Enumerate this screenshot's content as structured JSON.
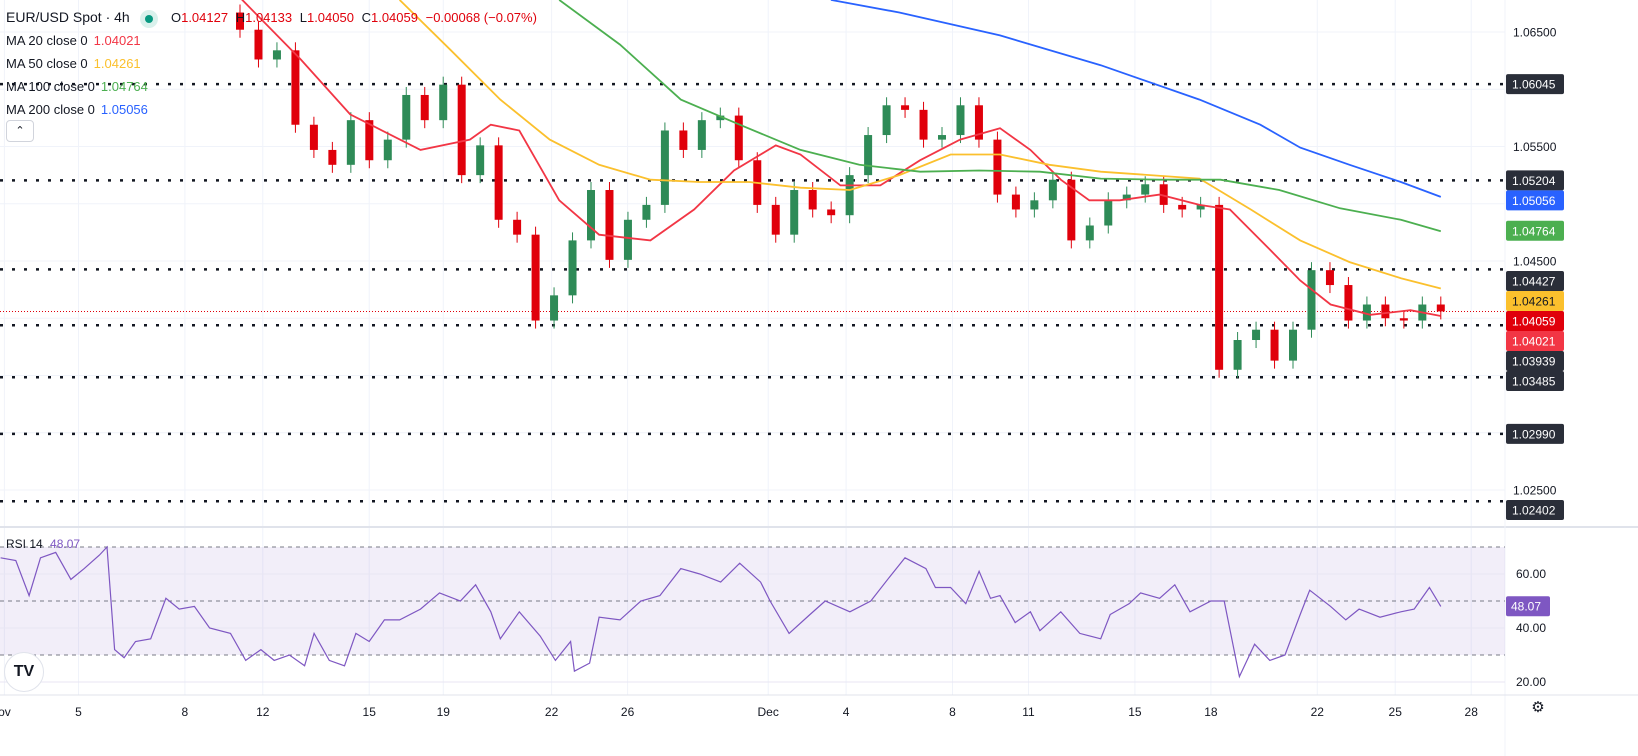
{
  "header": {
    "symbol": "EUR/USD Spot · 4h",
    "o_label": "O",
    "o": "1.04127",
    "h_label": "H",
    "h": "1.04133",
    "l_label": "L",
    "l": "1.04050",
    "c_label": "C",
    "c": "1.04059",
    "change": "−0.00068 (−0.07%)",
    "market_status_color": "#089981"
  },
  "indicators": [
    {
      "label": "MA 20 close 0",
      "value": "1.04021",
      "color": "#f23645"
    },
    {
      "label": "MA 50 close 0",
      "value": "1.04261",
      "color": "#fbc02d"
    },
    {
      "label": "MA 100 close 0",
      "value": "1.04764",
      "color": "#4caf50"
    },
    {
      "label": "MA 200 close 0",
      "value": "1.05056",
      "color": "#2962ff"
    }
  ],
  "collapse_icon": "chevron-up-icon",
  "rsi_legend": {
    "label": "RSI 14",
    "value": "48.07",
    "color": "#7e57c2"
  },
  "colors": {
    "up": "#2e8b57",
    "down": "#e0000b",
    "level_badge": "#2a2e39",
    "rsi_band": "#7e57c2"
  },
  "chart_data": {
    "type": "candlestick",
    "price_axis": {
      "ticks": [
        "1.06500",
        "1.05500",
        "1.04500",
        "1.02500"
      ],
      "tick_values": [
        1.065,
        1.055,
        1.045,
        1.025
      ],
      "range": [
        1.0225,
        1.0678
      ]
    },
    "levels": [
      {
        "value": 1.06045,
        "label": "1.06045"
      },
      {
        "value": 1.05204,
        "label": "1.05204"
      },
      {
        "value": 1.04427,
        "label": "1.04427"
      },
      {
        "value": 1.03939,
        "label": "1.03939"
      },
      {
        "value": 1.03485,
        "label": "1.03485"
      },
      {
        "value": 1.0299,
        "label": "1.02990"
      },
      {
        "value": 1.02402,
        "label": "1.02402"
      }
    ],
    "last_price": {
      "value": 1.04059,
      "label": "1.04059"
    },
    "closes": [
      1.0652,
      1.0626,
      1.0634,
      1.0569,
      1.0547,
      1.0534,
      1.0573,
      1.0538,
      1.0556,
      1.0595,
      1.0573,
      1.0604,
      1.0525,
      1.0551,
      1.0486,
      1.0473,
      1.0398,
      1.042,
      1.0468,
      1.0512,
      1.0451,
      1.0486,
      1.0499,
      1.0564,
      1.0547,
      1.0573,
      1.0577,
      1.0538,
      1.0499,
      1.0473,
      1.0512,
      1.0495,
      1.049,
      1.0525,
      1.056,
      1.0586,
      1.0582,
      1.0556,
      1.056,
      1.0586,
      1.0556,
      1.0508,
      1.0495,
      1.0503,
      1.0521,
      1.0468,
      1.0481,
      1.0503,
      1.0508,
      1.0517,
      1.0499,
      1.0495,
      1.0499,
      1.0355,
      1.0381,
      1.039,
      1.0363,
      1.039,
      1.0442,
      1.0429,
      1.0398,
      1.0412,
      1.04,
      1.0398,
      1.0412,
      1.0406
    ],
    "moving_averages": [
      {
        "name": "MA 20",
        "color": "#f23645",
        "label": "1.04021",
        "value": 1.04021,
        "points": [
          [
            0,
            1.068
          ],
          [
            3.2,
            1.0626
          ],
          [
            5.8,
            1.0578
          ],
          [
            9.5,
            1.0547
          ],
          [
            12.1,
            1.0556
          ],
          [
            13.2,
            1.0569
          ],
          [
            14.7,
            1.0564
          ],
          [
            16.8,
            1.0503
          ],
          [
            18.9,
            1.0473
          ],
          [
            21.6,
            1.0468
          ],
          [
            23.9,
            1.0495
          ],
          [
            26,
            1.0529
          ],
          [
            28.2,
            1.0551
          ],
          [
            29.5,
            1.0543
          ],
          [
            31.6,
            1.0516
          ],
          [
            33.7,
            1.0516
          ],
          [
            35.8,
            1.0538
          ],
          [
            37.9,
            1.0556
          ],
          [
            40,
            1.0566
          ],
          [
            41.6,
            1.0547
          ],
          [
            43.2,
            1.0521
          ],
          [
            44.7,
            1.0503
          ],
          [
            46.3,
            1.0503
          ],
          [
            48.4,
            1.0508
          ],
          [
            50.5,
            1.0499
          ],
          [
            52.1,
            1.0495
          ],
          [
            54.2,
            1.046
          ],
          [
            55.8,
            1.0433
          ],
          [
            57.4,
            1.0412
          ],
          [
            59.5,
            1.0403
          ],
          [
            61.6,
            1.0407
          ],
          [
            63.2,
            1.0402
          ]
        ]
      },
      {
        "name": "MA 50",
        "color": "#fbc02d",
        "label": "1.04261",
        "value": 1.04261,
        "points": [
          [
            8.4,
            1.0678
          ],
          [
            11.1,
            1.0634
          ],
          [
            13.7,
            1.0591
          ],
          [
            16.3,
            1.0556
          ],
          [
            18.9,
            1.0534
          ],
          [
            21.6,
            1.0521
          ],
          [
            24.2,
            1.0519
          ],
          [
            26.8,
            1.0519
          ],
          [
            29.5,
            1.0514
          ],
          [
            32.1,
            1.0512
          ],
          [
            34.7,
            1.0525
          ],
          [
            37.4,
            1.0543
          ],
          [
            40,
            1.0543
          ],
          [
            42.6,
            1.0534
          ],
          [
            45.3,
            1.0528
          ],
          [
            47.9,
            1.0525
          ],
          [
            50.5,
            1.0522
          ],
          [
            53.2,
            1.0495
          ],
          [
            55.8,
            1.0468
          ],
          [
            58.4,
            1.0449
          ],
          [
            61.1,
            1.0435
          ],
          [
            63.2,
            1.0426
          ]
        ]
      },
      {
        "name": "MA 100",
        "color": "#4caf50",
        "label": "1.04764",
        "value": 1.04764,
        "points": [
          [
            16.8,
            1.0678
          ],
          [
            20,
            1.0639
          ],
          [
            23.2,
            1.0591
          ],
          [
            26.3,
            1.0569
          ],
          [
            29.5,
            1.0547
          ],
          [
            32.6,
            1.0534
          ],
          [
            35.8,
            1.0528
          ],
          [
            38.9,
            1.0529
          ],
          [
            42.1,
            1.0528
          ],
          [
            45.3,
            1.0522
          ],
          [
            48.4,
            1.0521
          ],
          [
            51.6,
            1.0521
          ],
          [
            54.7,
            1.0512
          ],
          [
            57.9,
            1.0496
          ],
          [
            61.1,
            1.0486
          ],
          [
            63.2,
            1.0476
          ]
        ]
      },
      {
        "name": "MA 200",
        "color": "#2962ff",
        "label": "1.05056",
        "value": 1.05056,
        "points": [
          [
            31.1,
            1.0678
          ],
          [
            34.7,
            1.0667
          ],
          [
            40,
            1.0647
          ],
          [
            45.3,
            1.0621
          ],
          [
            50.5,
            1.0591
          ],
          [
            53.7,
            1.0569
          ],
          [
            55.8,
            1.0549
          ],
          [
            58.4,
            1.0534
          ],
          [
            61.1,
            1.0519
          ],
          [
            63.2,
            1.0506
          ]
        ]
      }
    ],
    "rsi": {
      "period": 14,
      "last": "48.07",
      "ticks": [
        "60.00",
        "40.00",
        "20.00"
      ],
      "tick_values": [
        60,
        40,
        20
      ],
      "band": [
        30,
        70
      ],
      "mid": 50,
      "points": [
        [
          -12.6,
          66
        ],
        [
          -11.8,
          65
        ],
        [
          -11.1,
          52
        ],
        [
          -10.5,
          66
        ],
        [
          -9.7,
          68
        ],
        [
          -8.9,
          58
        ],
        [
          -8.2,
          62
        ],
        [
          -7.4,
          67
        ],
        [
          -7.0,
          70
        ],
        [
          -6.6,
          32
        ],
        [
          -6.1,
          29
        ],
        [
          -5.5,
          35
        ],
        [
          -4.7,
          36
        ],
        [
          -3.9,
          51
        ],
        [
          -3.2,
          47
        ],
        [
          -2.4,
          48
        ],
        [
          -1.6,
          40
        ],
        [
          -0.5,
          38
        ],
        [
          0.3,
          28
        ],
        [
          1.1,
          32
        ],
        [
          1.8,
          28
        ],
        [
          2.6,
          30
        ],
        [
          3.4,
          26
        ],
        [
          3.9,
          38
        ],
        [
          4.7,
          28
        ],
        [
          5.5,
          26
        ],
        [
          6.1,
          38
        ],
        [
          6.8,
          35
        ],
        [
          7.6,
          43
        ],
        [
          8.4,
          43
        ],
        [
          9.5,
          47
        ],
        [
          10.5,
          53
        ],
        [
          11.6,
          50
        ],
        [
          12.4,
          56
        ],
        [
          13.2,
          46
        ],
        [
          13.7,
          36
        ],
        [
          14.7,
          46
        ],
        [
          15.8,
          37
        ],
        [
          16.6,
          28
        ],
        [
          17.4,
          35
        ],
        [
          17.6,
          24
        ],
        [
          18.4,
          27
        ],
        [
          18.9,
          44
        ],
        [
          20,
          43
        ],
        [
          21.1,
          50
        ],
        [
          22.1,
          52
        ],
        [
          23.2,
          62
        ],
        [
          24.2,
          60
        ],
        [
          25.3,
          57
        ],
        [
          26.3,
          64
        ],
        [
          27.4,
          57
        ],
        [
          27.9,
          50
        ],
        [
          28.9,
          38
        ],
        [
          30,
          45
        ],
        [
          30.8,
          50
        ],
        [
          32.1,
          46
        ],
        [
          33.2,
          50
        ],
        [
          34.2,
          59
        ],
        [
          35,
          66
        ],
        [
          36.1,
          62
        ],
        [
          36.6,
          55
        ],
        [
          37.4,
          55
        ],
        [
          38.2,
          49
        ],
        [
          38.9,
          61
        ],
        [
          39.5,
          51
        ],
        [
          40,
          52
        ],
        [
          40.8,
          42
        ],
        [
          41.6,
          46
        ],
        [
          42.1,
          39
        ],
        [
          43.2,
          46
        ],
        [
          44.2,
          38
        ],
        [
          45.3,
          36
        ],
        [
          45.8,
          45
        ],
        [
          46.8,
          49
        ],
        [
          47.4,
          53
        ],
        [
          48.4,
          51
        ],
        [
          49.2,
          56
        ],
        [
          50,
          46
        ],
        [
          51.1,
          50
        ],
        [
          51.8,
          50
        ],
        [
          52.6,
          22
        ],
        [
          53.4,
          34
        ],
        [
          54.2,
          28
        ],
        [
          55,
          30
        ],
        [
          55.8,
          45
        ],
        [
          56.3,
          54
        ],
        [
          57.4,
          48
        ],
        [
          58.2,
          43
        ],
        [
          58.9,
          47
        ],
        [
          60,
          44
        ],
        [
          61.1,
          46
        ],
        [
          61.8,
          47
        ],
        [
          62.6,
          55
        ],
        [
          63.2,
          48
        ]
      ]
    },
    "time_axis": {
      "labels": [
        "ov",
        "5",
        "8",
        "12",
        "15",
        "19",
        "22",
        "26",
        "Dec",
        "4",
        "8",
        "11",
        "15",
        "18",
        "22",
        "25",
        "28"
      ],
      "bars": [
        -12.4,
        -8.5,
        -2.9,
        1.2,
        6.8,
        10.7,
        16.4,
        20.4,
        27.8,
        31.9,
        37.5,
        41.5,
        47.1,
        51.1,
        56.7,
        60.8,
        64.8
      ]
    }
  }
}
